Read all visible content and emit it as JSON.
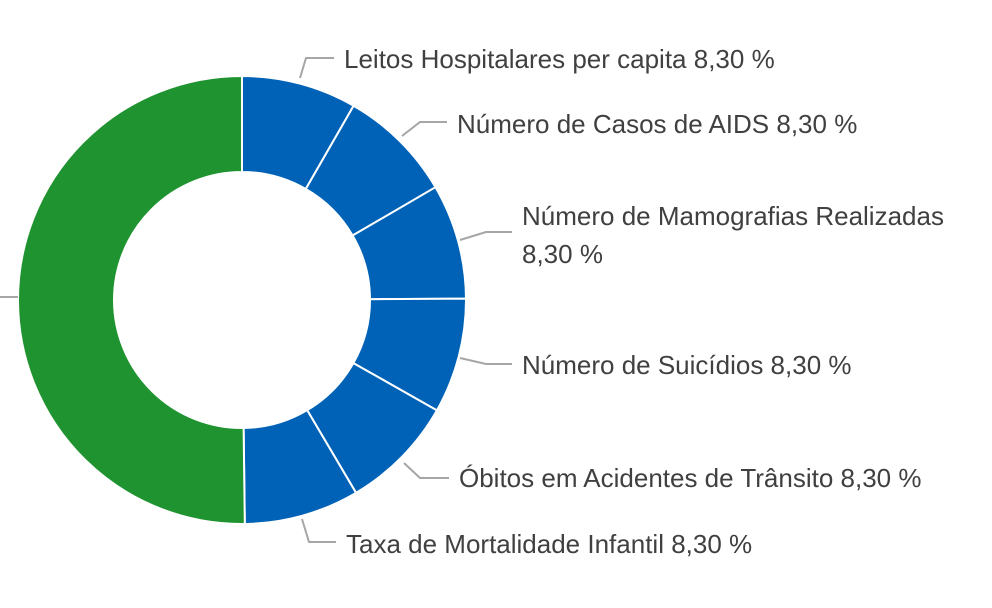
{
  "chart_data": {
    "type": "pie",
    "style": "donut",
    "slices": [
      {
        "label": "Leitos Hospitalares per capita",
        "value": 8.3,
        "value_text": "8,30 %",
        "color": "#0062b7"
      },
      {
        "label": "Número de Casos de AIDS",
        "value": 8.3,
        "value_text": "8,30 %",
        "color": "#0062b7"
      },
      {
        "label": "Número de Mamografias Realizadas",
        "value": 8.3,
        "value_text": "8,30 %",
        "color": "#0062b7"
      },
      {
        "label": "Número de Suicídios",
        "value": 8.3,
        "value_text": "8,30 %",
        "color": "#0062b7"
      },
      {
        "label": "Óbitos em Acidentes de Trânsito",
        "value": 8.3,
        "value_text": "8,30 %",
        "color": "#0062b7"
      },
      {
        "label": "Taxa de Mortalidade Infantil",
        "value": 8.3,
        "value_text": "8,30 %",
        "color": "#0062b7"
      },
      {
        "label": "",
        "value": 50.2,
        "value_text": "",
        "color": "#1f9330"
      }
    ]
  }
}
